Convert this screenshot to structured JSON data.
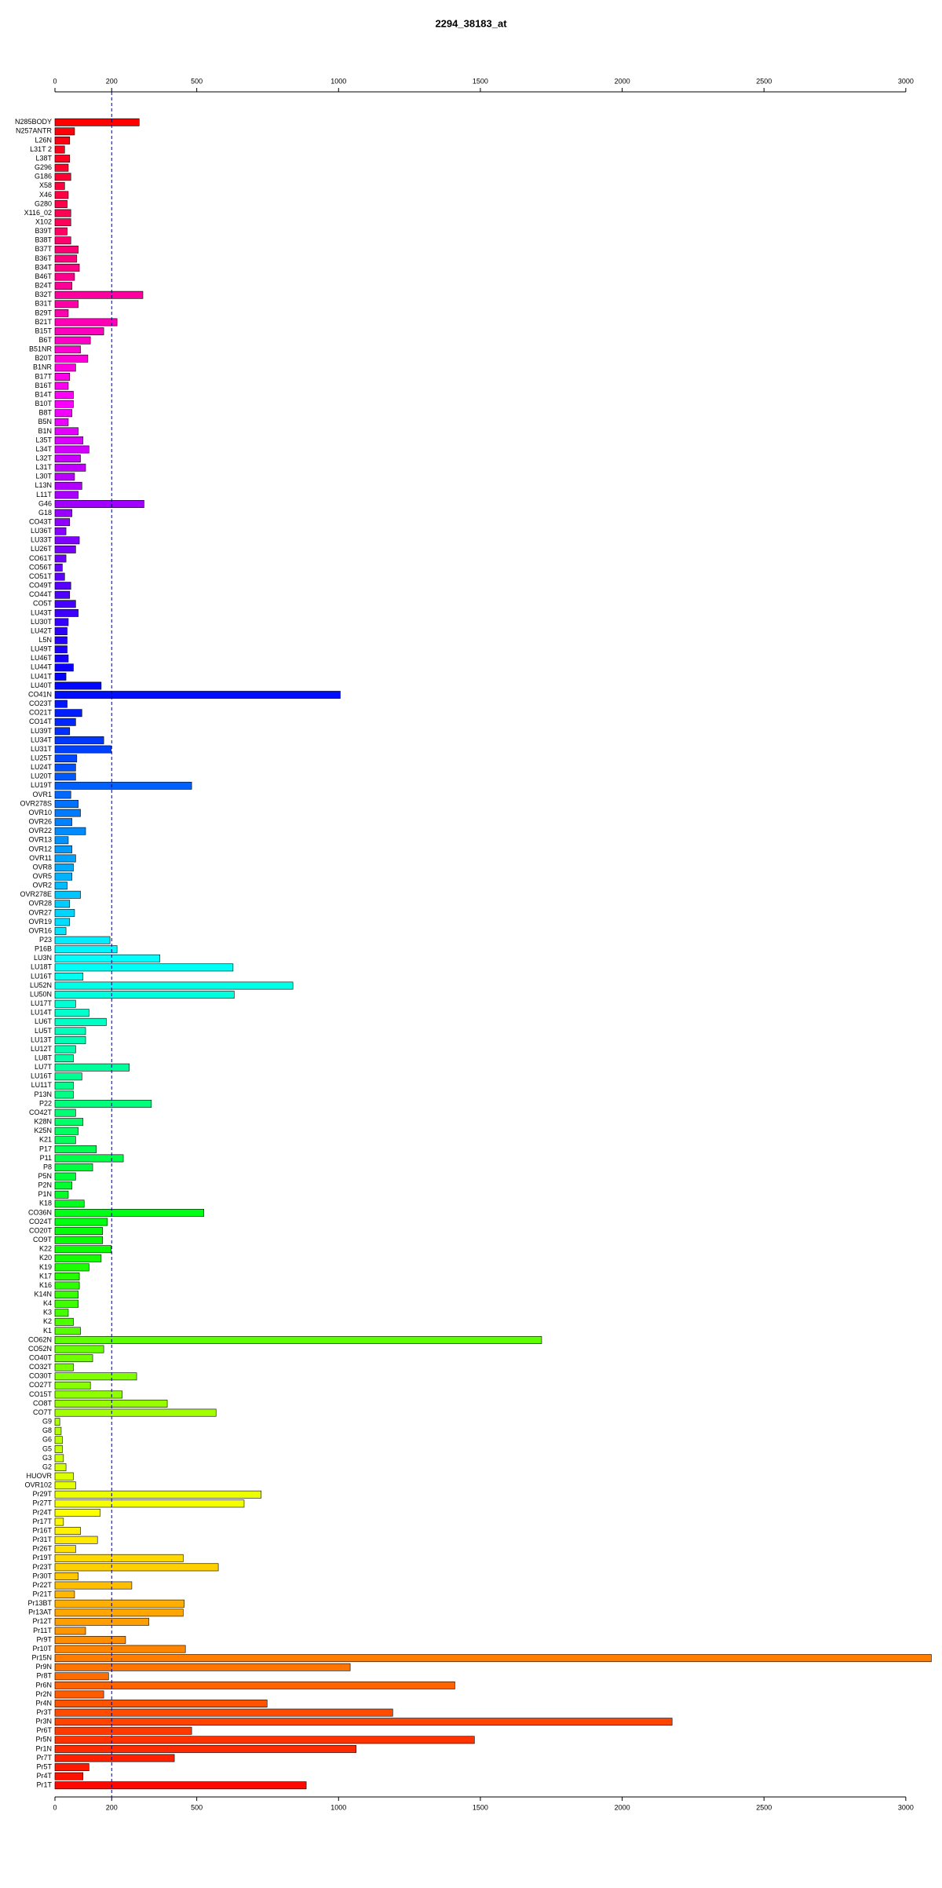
{
  "chart_data": {
    "type": "barh",
    "title": "2294_38183_at",
    "categories": [
      "N285BODY",
      "N257ANTR",
      "L26N",
      "L31T 2",
      "L38T",
      "G296",
      "G186",
      "X58",
      "X46",
      "G280",
      "X116_02",
      "X102",
      "B39T",
      "B38T",
      "B37T",
      "B36T",
      "B34T",
      "B46T",
      "B24T",
      "B32T",
      "B31T",
      "B29T",
      "B21T",
      "B15T",
      "B6T",
      "B51NR",
      "B20T",
      "B1NR",
      "B17T",
      "B16T",
      "B14T",
      "B10T",
      "B8T",
      "B5N",
      "B1N",
      "L35T",
      "L34T",
      "L32T",
      "L31T",
      "L30T",
      "L13N",
      "L11T",
      "G46",
      "G18",
      "CO43T",
      "LU36T",
      "LU33T",
      "LU26T",
      "CO61T",
      "CO56T",
      "CO51T",
      "CO49T",
      "CO44T",
      "CO5T",
      "LU43T",
      "LU30T",
      "LU42T",
      "L5N",
      "LU49T",
      "LU46T",
      "LU44T",
      "LU41T",
      "LU40T",
      "CO41N",
      "CO23T",
      "CO21T",
      "CO14T",
      "LU39T",
      "LU34T",
      "LU31T",
      "LU25T",
      "LU24T",
      "LU20T",
      "LU19T",
      "OVR1",
      "OVR278S",
      "OVR10",
      "OVR26",
      "OVR22",
      "OVR13",
      "OVR12",
      "OVR11",
      "OVR8",
      "OVR5",
      "OVR2",
      "OVR278E",
      "OVR28",
      "OVR27",
      "OVR19",
      "OVR16",
      "P23",
      "P16B",
      "LU3N",
      "LU18T",
      "LU16T",
      "LU52N",
      "LU50N",
      "LU17T",
      "LU14T",
      "LU6T",
      "LU5T",
      "LU13T",
      "LU12T",
      "LU8T",
      "LU7T",
      "LU16T",
      "LU11T",
      "P13N",
      "P22",
      "CO42T",
      "K28N",
      "K25N",
      "K21",
      "P17",
      "P11",
      "P8",
      "P5N",
      "P2N",
      "P1N",
      "K18",
      "CO36N",
      "CO24T",
      "CO20T",
      "CO9T",
      "K22",
      "K20",
      "K19",
      "K17",
      "K16",
      "K14N",
      "K4",
      "K3",
      "K2",
      "K1",
      "CO62N",
      "CO52N",
      "CO40T",
      "CO32T",
      "CO30T",
      "CO27T",
      "CO15T",
      "CO8T",
      "CO7T",
      "G9",
      "G8",
      "G6",
      "G5",
      "G3",
      "G2",
      "HUOVR",
      "OVR102",
      "Pr29T",
      "Pr27T",
      "Pr24T",
      "Pr17T",
      "Pr16T",
      "Pr31T",
      "Pr26T",
      "Pr19T",
      "Pr23T",
      "Pr30T",
      "Pr22T",
      "Pr21T",
      "Pr13BT",
      "Pr13AT",
      "Pr12T",
      "Pr11T",
      "Pr9T",
      "Pr10T",
      "Pr15N",
      "Pr9N",
      "Pr8T",
      "Pr6N",
      "Pr2N",
      "Pr4N",
      "Pr3T",
      "Pr3N",
      "Pr6T",
      "Pr5N",
      "Pr1N",
      "Pr7T",
      "Pr5T",
      "Pr4T",
      "Pr1T"
    ],
    "values": [
      297,
      69,
      52,
      34,
      52,
      47,
      56,
      34,
      47,
      43,
      56,
      56,
      43,
      56,
      82,
      77,
      86,
      69,
      60,
      310,
      82,
      47,
      219,
      172,
      125,
      90,
      116,
      73,
      52,
      47,
      65,
      65,
      60,
      47,
      82,
      99,
      120,
      90,
      108,
      69,
      95,
      82,
      314,
      60,
      52,
      39,
      86,
      73,
      39,
      26,
      34,
      56,
      52,
      73,
      82,
      47,
      43,
      43,
      43,
      47,
      65,
      39,
      163,
      1006,
      43,
      95,
      73,
      52,
      172,
      198,
      77,
      73,
      73,
      482,
      56,
      82,
      90,
      60,
      108,
      47,
      60,
      73,
      65,
      60,
      43,
      90,
      52,
      69,
      52,
      39,
      194,
      219,
      370,
      628,
      99,
      839,
      632,
      73,
      120,
      181,
      108,
      108,
      73,
      65,
      262,
      95,
      65,
      65,
      340,
      73,
      99,
      82,
      73,
      146,
      241,
      133,
      73,
      60,
      47,
      103,
      525,
      185,
      168,
      168,
      198,
      163,
      120,
      86,
      86,
      82,
      82,
      47,
      65,
      90,
      1716,
      172,
      133,
      65,
      288,
      125,
      237,
      396,
      568,
      17,
      22,
      26,
      26,
      30,
      39,
      65,
      73,
      727,
      667,
      159,
      30,
      90,
      150,
      73,
      452,
      576,
      82,
      271,
      69,
      456,
      452,
      331,
      108,
      249,
      460,
      3090,
      1041,
      189,
      1410,
      172,
      748,
      1191,
      2176,
      482,
      1479,
      1062,
      421,
      120,
      99,
      886
    ],
    "color_scale": "rainbow",
    "xlim": [
      0,
      3100
    ],
    "xticks": [
      0,
      200,
      500,
      1000,
      1500,
      2000,
      2500,
      3000
    ],
    "vline": 200
  }
}
